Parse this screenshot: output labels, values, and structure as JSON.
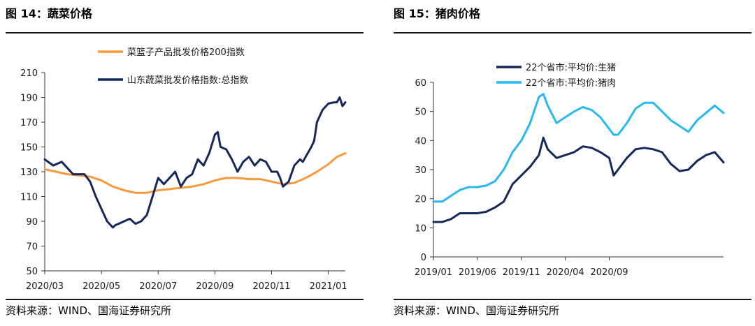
{
  "figures": [
    {
      "title": "图 14：蔬菜价格",
      "source": "资料来源：WIND、国海证券研究所",
      "chart_data": {
        "type": "line",
        "title": "",
        "xlabel": "",
        "ylabel": "",
        "x_ticks": [
          "2020/03",
          "2020/05",
          "2020/07",
          "2020/09",
          "2020/11",
          "2021/01"
        ],
        "y_ticks": [
          50,
          70,
          90,
          110,
          130,
          150,
          170,
          190,
          210
        ],
        "ylim": [
          50,
          210
        ],
        "grid": false,
        "legend": "top-center",
        "series": [
          {
            "name": "菜篮子产品批发价格200指数",
            "color": "#f79a3d",
            "x": [
              0,
              0.2,
              0.4,
              0.6,
              0.8,
              1.0,
              1.2,
              1.4,
              1.6,
              1.8,
              2.0,
              2.2,
              2.4,
              2.6,
              2.8,
              3.0,
              3.2,
              3.4,
              3.6,
              3.8,
              4.0,
              4.2,
              4.4,
              4.6,
              4.8,
              5.0,
              5.15,
              5.3
            ],
            "values": [
              132,
              130,
              128,
              127,
              126,
              123,
              118,
              115,
              113,
              113,
              115,
              116,
              117,
              118,
              120,
              123,
              125,
              125,
              124,
              124,
              122,
              120,
              121,
              125,
              130,
              136,
              142,
              145
            ]
          },
          {
            "name": "山东蔬菜批发价格指数:总指数",
            "color": "#14285a",
            "x": [
              0,
              0.15,
              0.3,
              0.5,
              0.7,
              0.8,
              0.9,
              1.0,
              1.1,
              1.2,
              1.25,
              1.3,
              1.4,
              1.5,
              1.6,
              1.7,
              1.8,
              1.9,
              2.0,
              2.1,
              2.2,
              2.3,
              2.4,
              2.5,
              2.6,
              2.7,
              2.8,
              2.9,
              3.0,
              3.05,
              3.1,
              3.2,
              3.3,
              3.4,
              3.5,
              3.6,
              3.7,
              3.8,
              3.9,
              4.0,
              4.1,
              4.15,
              4.2,
              4.3,
              4.4,
              4.5,
              4.55,
              4.6,
              4.7,
              4.75,
              4.8,
              4.9,
              5.0,
              5.1,
              5.15,
              5.2,
              5.25,
              5.3
            ],
            "values": [
              140,
              135,
              138,
              128,
              128,
              122,
              110,
              100,
              90,
              85,
              87,
              88,
              90,
              92,
              88,
              90,
              95,
              110,
              125,
              120,
              125,
              130,
              118,
              125,
              128,
              140,
              135,
              145,
              160,
              162,
              150,
              148,
              140,
              130,
              138,
              142,
              135,
              140,
              138,
              130,
              130,
              125,
              118,
              122,
              135,
              140,
              138,
              142,
              150,
              155,
              170,
              180,
              185,
              186,
              186,
              190,
              183,
              186
            ]
          }
        ]
      }
    },
    {
      "title": "图 15：猪肉价格",
      "source": "资料来源：WIND、国海证券研究所",
      "chart_data": {
        "type": "line",
        "title": "",
        "xlabel": "",
        "ylabel": "",
        "x_ticks": [
          "2019/01",
          "2019/06",
          "2019/11",
          "2020/04",
          "2020/09"
        ],
        "y_ticks": [
          0,
          10,
          20,
          30,
          40,
          50,
          60
        ],
        "ylim": [
          0,
          60
        ],
        "grid": false,
        "legend": "top-center",
        "series": [
          {
            "name": "22个省市:平均价:生猪",
            "color": "#14285a",
            "x": [
              0,
              0.2,
              0.4,
              0.6,
              0.8,
              1.0,
              1.2,
              1.4,
              1.6,
              1.8,
              2.0,
              2.2,
              2.4,
              2.5,
              2.6,
              2.8,
              3.0,
              3.2,
              3.4,
              3.6,
              3.8,
              4.0,
              4.1,
              4.2,
              4.4,
              4.6,
              4.8,
              5.0,
              5.2,
              5.4,
              5.6,
              5.8,
              6.0,
              6.2,
              6.4,
              6.6
            ],
            "values": [
              12,
              12,
              13,
              15,
              15,
              15,
              15.5,
              17,
              19,
              25,
              28,
              31,
              35,
              41,
              37,
              34,
              35,
              36,
              38,
              37.5,
              36,
              34,
              28,
              30,
              34,
              37,
              37.5,
              37,
              36,
              32,
              29.5,
              30,
              33,
              35,
              36,
              32.5
            ]
          },
          {
            "name": "22个省市:平均价:猪肉",
            "color": "#29b8f0",
            "x": [
              0,
              0.2,
              0.4,
              0.6,
              0.8,
              1.0,
              1.2,
              1.4,
              1.6,
              1.8,
              2.0,
              2.2,
              2.4,
              2.5,
              2.6,
              2.8,
              3.0,
              3.2,
              3.4,
              3.6,
              3.8,
              4.0,
              4.1,
              4.2,
              4.4,
              4.6,
              4.8,
              5.0,
              5.2,
              5.4,
              5.6,
              5.8,
              6.0,
              6.2,
              6.4,
              6.6
            ],
            "values": [
              19,
              19,
              21,
              23,
              24,
              24,
              24.5,
              26,
              30,
              36,
              40,
              46,
              55,
              56,
              52,
              46,
              48,
              50,
              51.5,
              50.5,
              48,
              44,
              42,
              42,
              46,
              51,
              53,
              53,
              50,
              47,
              45,
              43,
              47,
              49.5,
              52,
              49.5
            ]
          }
        ]
      }
    }
  ]
}
